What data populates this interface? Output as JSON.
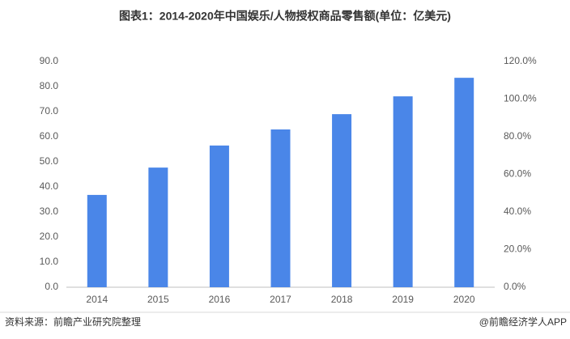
{
  "chart_data": {
    "type": "bar",
    "title": "图表1：2014-2020年中国娱乐/人物授权商品零售额(单位：亿美元)",
    "categories": [
      "2014",
      "2015",
      "2016",
      "2017",
      "2018",
      "2019",
      "2020"
    ],
    "values": [
      36.8,
      47.7,
      56.5,
      62.9,
      69.0,
      76.1,
      83.5
    ],
    "color": "#4a86e8",
    "ylim": [
      0,
      90
    ],
    "yticks": [
      {
        "value": 0,
        "label": "0.0"
      },
      {
        "value": 10,
        "label": "10.0"
      },
      {
        "value": 20,
        "label": "20.0"
      },
      {
        "value": 30,
        "label": "30.0"
      },
      {
        "value": 40,
        "label": "40.0"
      },
      {
        "value": 50,
        "label": "50.0"
      },
      {
        "value": 60,
        "label": "60.0"
      },
      {
        "value": 70,
        "label": "70.0"
      },
      {
        "value": 80,
        "label": "80.0"
      },
      {
        "value": 90,
        "label": "90.0"
      }
    ],
    "y2lim": [
      0,
      120
    ],
    "y2ticks": [
      {
        "value": 0,
        "label": "0.0%"
      },
      {
        "value": 20,
        "label": "20.0%"
      },
      {
        "value": 40,
        "label": "40.0%"
      },
      {
        "value": 60,
        "label": "60.0%"
      },
      {
        "value": 80,
        "label": "80.0%"
      },
      {
        "value": 100,
        "label": "100.0%"
      },
      {
        "value": 120,
        "label": "120.0%"
      }
    ],
    "grid": false,
    "source": "资料来源：前瞻产业研究院整理",
    "footer": "@前瞻经济学人APP"
  }
}
